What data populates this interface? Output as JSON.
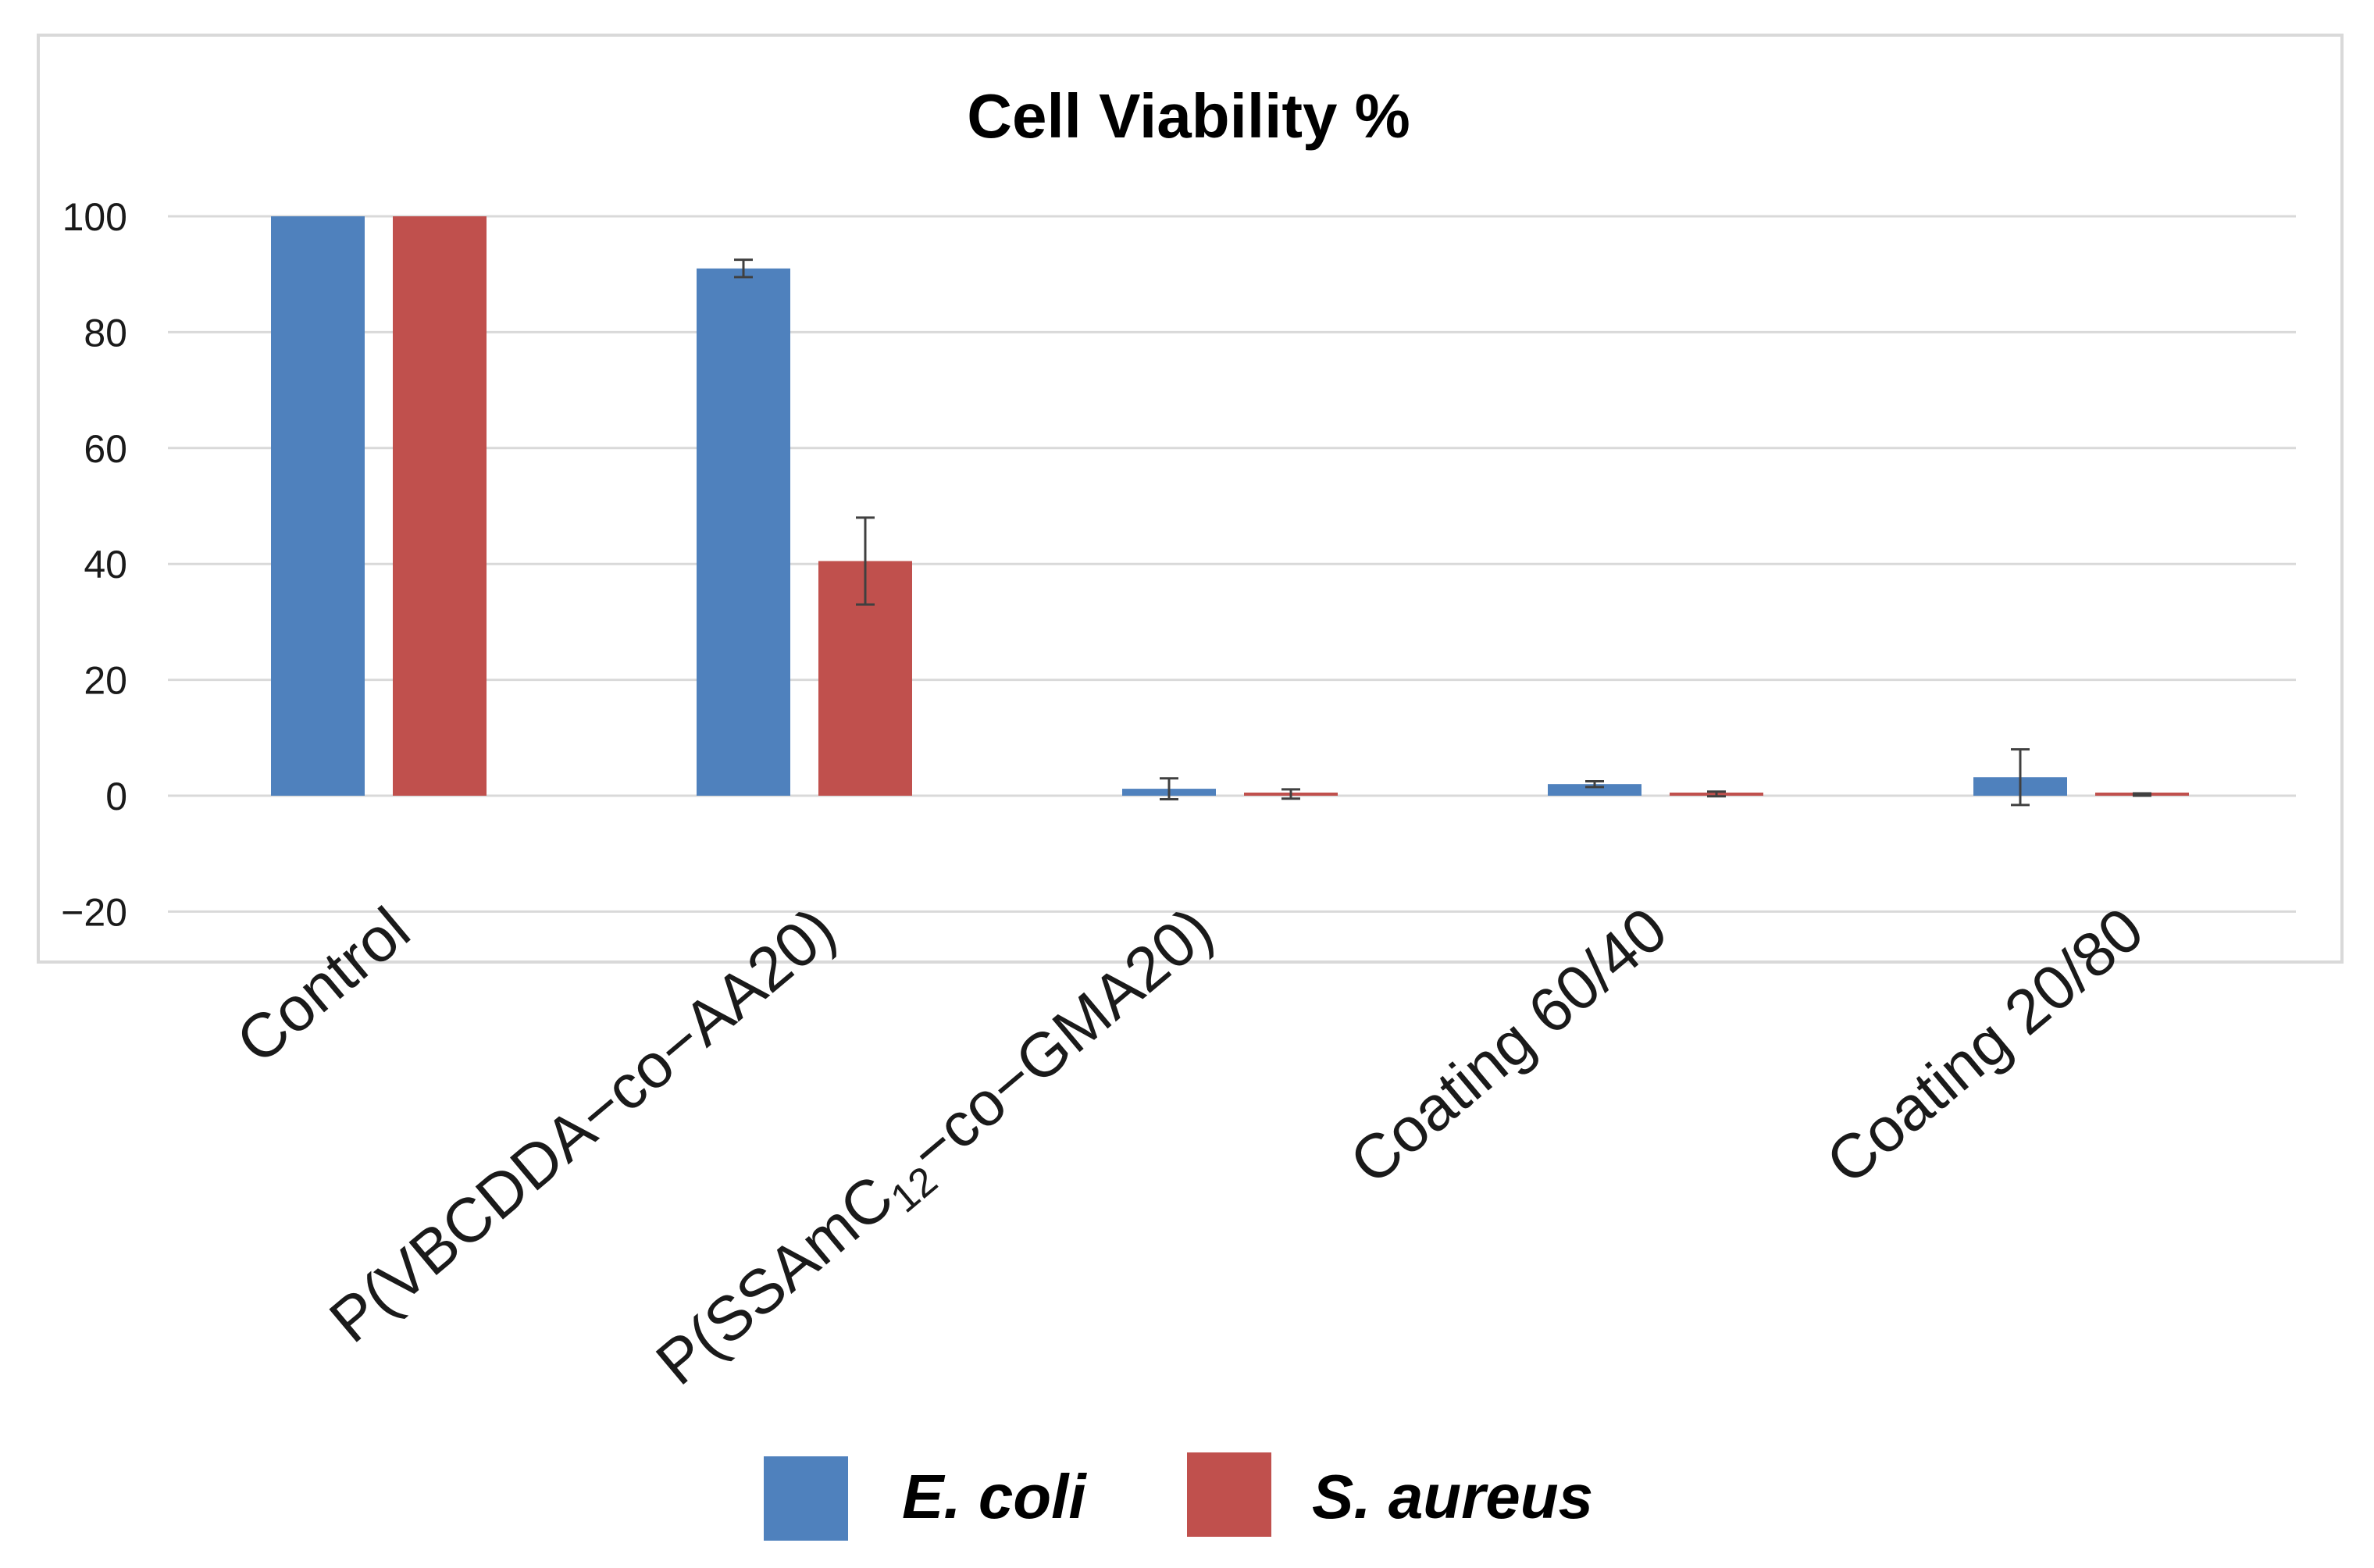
{
  "chart_data": {
    "type": "bar",
    "title": "Cell Viability %",
    "xlabel": "",
    "ylabel": "",
    "ylim": [
      -20,
      100
    ],
    "yticks": [
      -20,
      0,
      20,
      40,
      60,
      80,
      100
    ],
    "ytick_labels": [
      "−20",
      "0",
      "20",
      "40",
      "60",
      "80",
      "100"
    ],
    "grid": true,
    "legend_position": "bottom",
    "categories": [
      "Control",
      "P(VBCDDA−co−AA20)",
      "P(SSAmC12−co−GMA20)",
      "Coating 60/40",
      "Coating 20/80"
    ],
    "category_parts": [
      [
        {
          "t": "Control"
        }
      ],
      [
        {
          "t": "P(VBCDDA−co−AA20)"
        }
      ],
      [
        {
          "t": "P(SSAmC"
        },
        {
          "t": "12",
          "sub": true
        },
        {
          "t": "−co−GMA20)"
        }
      ],
      [
        {
          "t": "Coating 60/40"
        }
      ],
      [
        {
          "t": "Coating 20/80"
        }
      ]
    ],
    "series": [
      {
        "name": "E. coli",
        "color": "#4f81bd",
        "values": [
          100,
          91,
          1.2,
          2,
          3.2
        ],
        "errors": [
          0,
          1.5,
          1.8,
          0.5,
          4.8
        ]
      },
      {
        "name": "S. aureus",
        "color": "#c0504d",
        "values": [
          100,
          40.5,
          0.3,
          0.3,
          0.2
        ],
        "errors": [
          0,
          7.5,
          0.8,
          0.4,
          0.2
        ]
      }
    ]
  }
}
